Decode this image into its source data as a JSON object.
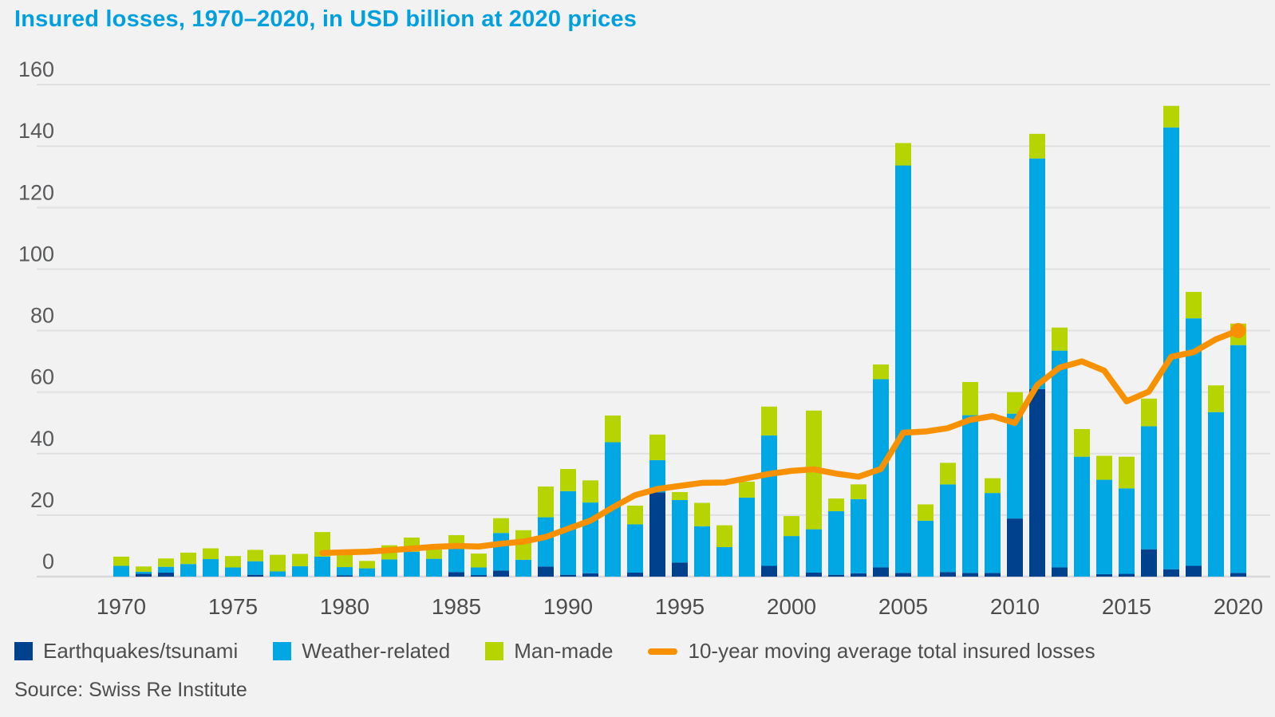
{
  "title": "Insured losses, 1970–2020, in USD billion at 2020 prices",
  "source": "Source: Swiss Re Institute",
  "legend": {
    "earthquakes": "Earthquakes/tsunami",
    "weather": "Weather-related",
    "manmade": "Man-made",
    "moving_average": "10-year moving average total insured losses"
  },
  "colors": {
    "earthquakes": "#00418e",
    "weather": "#00a7e2",
    "manmade": "#b5d400",
    "moving_average": "#f79100",
    "title": "#00a0df",
    "axis_text": "#4d4d4d",
    "gridline": "#e0e0e2",
    "background": "#f2f2f2"
  },
  "chart_data": {
    "type": "bar",
    "stacked": true,
    "title": "Insured losses, 1970–2020, in USD billion at 2020 prices",
    "xlabel": "",
    "ylabel": "USD billion at 2020 prices",
    "ylim": [
      0,
      160
    ],
    "y_ticks": [
      0,
      20,
      40,
      60,
      80,
      100,
      120,
      140,
      160
    ],
    "x_tick_labels": [
      1970,
      1975,
      1980,
      1985,
      1990,
      1995,
      2000,
      2005,
      2010,
      2015,
      2020
    ],
    "grid": true,
    "legend_position": "bottom",
    "x": [
      1970,
      1971,
      1972,
      1973,
      1974,
      1975,
      1976,
      1977,
      1978,
      1979,
      1980,
      1981,
      1982,
      1983,
      1984,
      1985,
      1986,
      1987,
      1988,
      1989,
      1990,
      1991,
      1992,
      1993,
      1994,
      1995,
      1996,
      1997,
      1998,
      1999,
      2000,
      2001,
      2002,
      2003,
      2004,
      2005,
      2006,
      2007,
      2008,
      2009,
      2010,
      2011,
      2012,
      2013,
      2014,
      2015,
      2016,
      2017,
      2018,
      2019,
      2020
    ],
    "series": [
      {
        "name": "Earthquakes/tsunami",
        "color": "#00418e",
        "values": [
          0,
          0.9,
          1.3,
          0,
          0,
          0,
          0.6,
          0,
          0,
          0,
          0.4,
          0,
          0,
          0,
          0,
          1.5,
          0.5,
          2,
          0,
          3.3,
          0.6,
          1.1,
          0,
          1.3,
          27.4,
          4.6,
          0,
          0,
          0,
          3.5,
          0,
          1.3,
          0.6,
          1.1,
          3,
          1.2,
          0,
          1.5,
          1.2,
          1.2,
          18.9,
          61,
          3,
          0,
          0.8,
          0.9,
          8.9,
          2.4,
          3.5,
          0,
          1.2
        ]
      },
      {
        "name": "Weather-related",
        "color": "#00a7e2",
        "values": [
          3.5,
          0.7,
          1.9,
          4.1,
          5.7,
          3,
          4.4,
          1.7,
          3.4,
          6.5,
          2.7,
          2.7,
          5.6,
          8.1,
          5.8,
          8,
          2.5,
          12.2,
          5.5,
          16,
          27.2,
          23,
          43.7,
          15.7,
          10.5,
          20.3,
          16.4,
          9.6,
          25.7,
          42.4,
          13.2,
          14.1,
          20.7,
          24.1,
          61.2,
          132.5,
          18.2,
          28.5,
          51.3,
          26,
          34.1,
          75,
          70.5,
          39,
          30.7,
          27.8,
          40,
          143.7,
          80.5,
          53.5,
          74.1
        ]
      },
      {
        "name": "Man-made",
        "color": "#b5d400",
        "values": [
          3,
          1.7,
          2.7,
          3.7,
          3.5,
          3.7,
          3.7,
          5.4,
          4,
          8,
          4.9,
          2.4,
          4.6,
          4.6,
          3,
          4,
          4.5,
          4.8,
          9.6,
          10,
          7.2,
          7.2,
          8.7,
          6.1,
          8.3,
          2.6,
          7.6,
          7.1,
          5.2,
          9.4,
          6.5,
          38.6,
          4.1,
          4.8,
          4.8,
          7.3,
          5.3,
          7,
          10.8,
          4.8,
          7,
          8,
          7.5,
          9,
          7.8,
          10.3,
          9,
          7,
          8.6,
          8.7,
          7
        ]
      }
    ],
    "line_series": {
      "name": "10-year moving average total insured losses",
      "color": "#f79100",
      "values": [
        null,
        null,
        null,
        null,
        null,
        null,
        null,
        null,
        null,
        7.7,
        7.9,
        8.1,
        8.6,
        9.1,
        9.7,
        10,
        9.8,
        10.7,
        11.4,
        12.9,
        15.6,
        18.2,
        22.5,
        26.5,
        28.5,
        29.5,
        30.5,
        30.6,
        32,
        33.4,
        34.4,
        34.9,
        33.5,
        32.5,
        35,
        46.8,
        47.2,
        48.3,
        51,
        52.2,
        50,
        62.3,
        68,
        70,
        67,
        57,
        60.2,
        71.5,
        73,
        77.2,
        80
      ]
    }
  }
}
